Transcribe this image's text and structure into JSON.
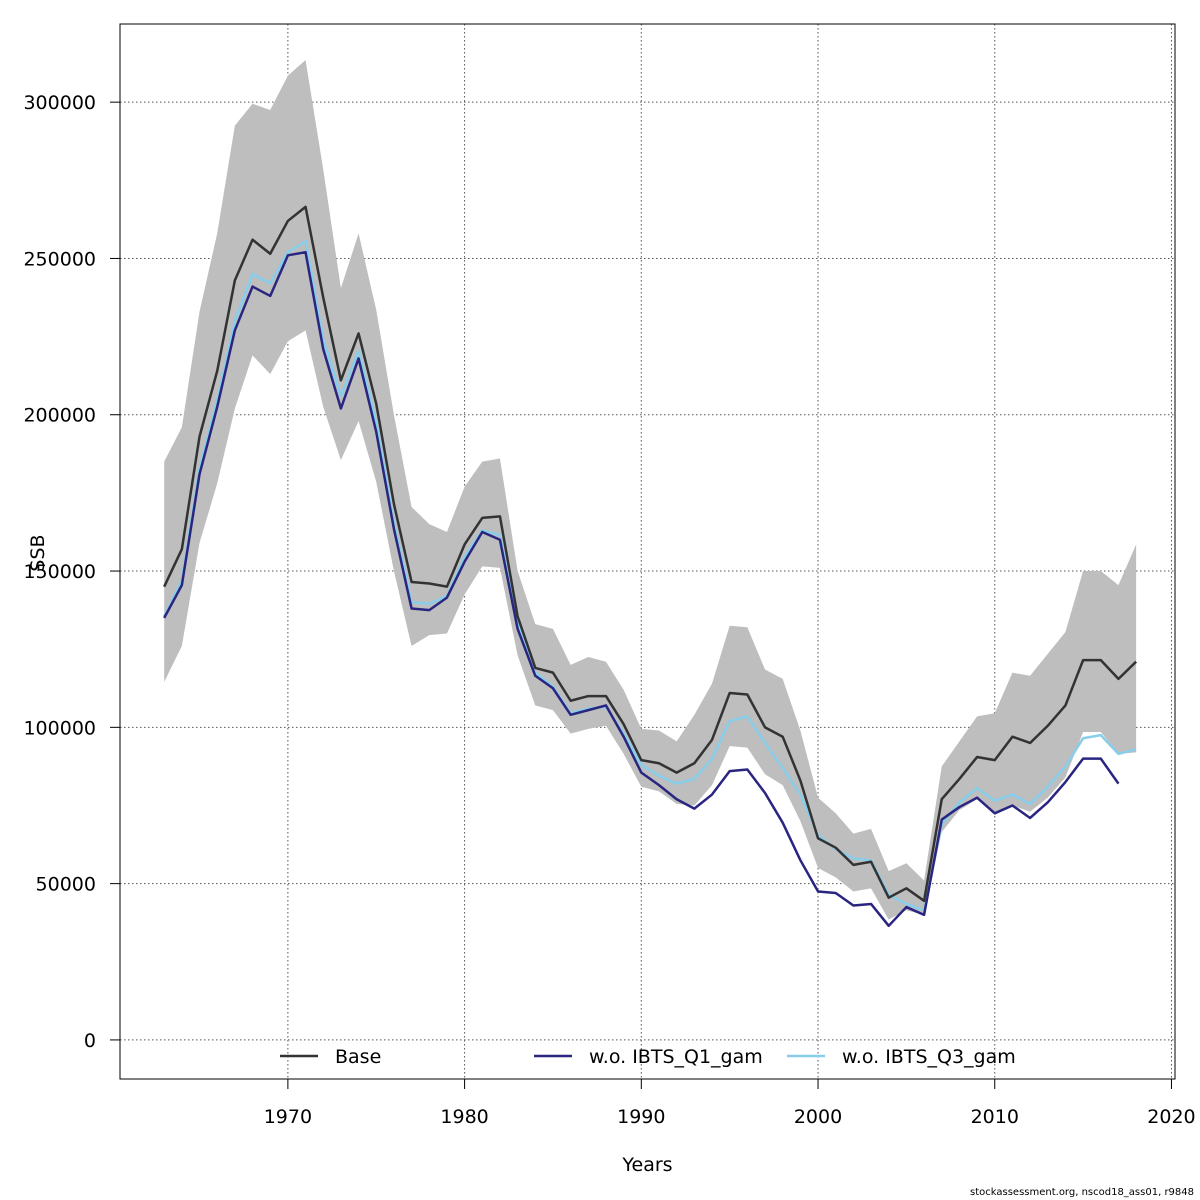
{
  "chart_data": {
    "type": "line",
    "title": "",
    "xlabel": "Years",
    "ylabel": "SSB",
    "xlim": [
      1960.5,
      2020.2
    ],
    "ylim": [
      -12500,
      325000
    ],
    "x_ticks": [
      1970,
      1980,
      1990,
      2000,
      2010,
      2020
    ],
    "y_ticks": [
      0,
      50000,
      100000,
      150000,
      200000,
      250000,
      300000
    ],
    "grid": true,
    "legend_position": "bottom",
    "band": {
      "color": "#bebebe",
      "x": [
        1963,
        1964,
        1965,
        1966,
        1967,
        1968,
        1969,
        1970,
        1971,
        1972,
        1973,
        1974,
        1975,
        1976,
        1977,
        1978,
        1979,
        1980,
        1981,
        1982,
        1983,
        1984,
        1985,
        1986,
        1987,
        1988,
        1989,
        1990,
        1991,
        1992,
        1993,
        1994,
        1995,
        1996,
        1997,
        1998,
        1999,
        2000,
        2001,
        2002,
        2003,
        2004,
        2005,
        2006,
        2007,
        2008,
        2009,
        2010,
        2011,
        2012,
        2013,
        2014,
        2015,
        2016,
        2017,
        2018
      ],
      "upper": [
        185000,
        196000,
        233000,
        258000,
        292500,
        299500,
        297500,
        308500,
        313500,
        278500,
        240500,
        258000,
        233500,
        200000,
        170500,
        165000,
        162500,
        177000,
        185000,
        186000,
        150000,
        133000,
        131500,
        120000,
        122500,
        121000,
        112000,
        99500,
        99000,
        95500,
        104000,
        114000,
        132500,
        132000,
        118500,
        115500,
        99000,
        77500,
        72500,
        66000,
        67500,
        54000,
        56500,
        51000,
        87500,
        95500,
        103500,
        104500,
        117500,
        116500,
        123500,
        130500,
        150000,
        150000,
        145500,
        158500
      ],
      "lower": [
        114500,
        126000,
        159000,
        178000,
        202000,
        219000,
        213000,
        223500,
        227000,
        202500,
        185500,
        198000,
        178500,
        150000,
        126000,
        129500,
        130000,
        142500,
        151500,
        151000,
        123000,
        107000,
        105500,
        98000,
        99500,
        100500,
        91500,
        81000,
        79500,
        75500,
        75000,
        81500,
        94000,
        93500,
        85000,
        81500,
        70000,
        55000,
        52000,
        47500,
        48500,
        38500,
        41500,
        40000,
        66500,
        73500,
        77000,
        73000,
        75000,
        73000,
        77500,
        84000,
        98500,
        98500,
        91500,
        92000
      ]
    },
    "series": [
      {
        "name": "Base",
        "color": "#333333",
        "x": [
          1963,
          1964,
          1965,
          1966,
          1967,
          1968,
          1969,
          1970,
          1971,
          1972,
          1973,
          1974,
          1975,
          1976,
          1977,
          1978,
          1979,
          1980,
          1981,
          1982,
          1983,
          1984,
          1985,
          1986,
          1987,
          1988,
          1989,
          1990,
          1991,
          1992,
          1993,
          1994,
          1995,
          1996,
          1997,
          1998,
          1999,
          2000,
          2001,
          2002,
          2003,
          2004,
          2005,
          2006,
          2007,
          2008,
          2009,
          2010,
          2011,
          2012,
          2013,
          2014,
          2015,
          2016,
          2017,
          2018
        ],
        "values": [
          145000,
          157000,
          193000,
          214000,
          243000,
          256000,
          251500,
          262000,
          266500,
          237500,
          211000,
          226000,
          203500,
          171500,
          146500,
          146000,
          145000,
          158500,
          167000,
          167500,
          135500,
          119000,
          117500,
          108500,
          110000,
          110000,
          101000,
          89500,
          88500,
          85500,
          88500,
          96000,
          111000,
          110500,
          100000,
          97000,
          83000,
          64500,
          61500,
          56000,
          57000,
          45500,
          48500,
          44500,
          77000,
          83500,
          90500,
          89500,
          97000,
          95000,
          100500,
          107000,
          121500,
          121500,
          115500,
          121000
        ]
      },
      {
        "name": "w.o. IBTS_Q1_gam",
        "color": "#2a2580",
        "x": [
          1963,
          1964,
          1965,
          1966,
          1967,
          1968,
          1969,
          1970,
          1971,
          1972,
          1973,
          1974,
          1975,
          1976,
          1977,
          1978,
          1979,
          1980,
          1981,
          1982,
          1983,
          1984,
          1985,
          1986,
          1987,
          1988,
          1989,
          1990,
          1991,
          1992,
          1993,
          1994,
          1995,
          1996,
          1997,
          1998,
          1999,
          2000,
          2001,
          2002,
          2003,
          2004,
          2005,
          2006,
          2007,
          2008,
          2009,
          2010,
          2011,
          2012,
          2013,
          2014,
          2015,
          2016,
          2017
        ],
        "values": [
          135000,
          145500,
          181000,
          202500,
          227000,
          241000,
          238000,
          251000,
          252000,
          221000,
          202000,
          218000,
          194500,
          163500,
          138000,
          137500,
          141500,
          153000,
          162500,
          160000,
          131500,
          116500,
          112500,
          104000,
          105500,
          107000,
          97000,
          85500,
          81500,
          77000,
          74000,
          78500,
          86000,
          86500,
          79000,
          69500,
          57500,
          47500,
          47000,
          43000,
          43500,
          36500,
          42500,
          40000,
          70500,
          74500,
          77500,
          72500,
          75000,
          71000,
          76000,
          82500,
          90000,
          90000,
          82000
        ]
      },
      {
        "name": "w.o. IBTS_Q3_gam",
        "color": "#87ceeb",
        "x": [
          1963,
          1964,
          1965,
          1966,
          1967,
          1968,
          1969,
          1970,
          1971,
          1972,
          1973,
          1974,
          1975,
          1976,
          1977,
          1978,
          1979,
          1980,
          1981,
          1982,
          1983,
          1984,
          1985,
          1986,
          1987,
          1988,
          1989,
          1990,
          1991,
          1992,
          1993,
          1994,
          1995,
          1996,
          1997,
          1998,
          1999,
          2000,
          2001,
          2002,
          2003,
          2004,
          2005,
          2006,
          2007,
          2008,
          2009,
          2010,
          2011,
          2012,
          2013,
          2014,
          2015,
          2016,
          2017,
          2018
        ],
        "values": [
          135500,
          147000,
          183000,
          204500,
          230000,
          245000,
          242000,
          252000,
          255500,
          224000,
          206000,
          220500,
          197500,
          165500,
          140000,
          139500,
          142000,
          154500,
          163000,
          161500,
          133000,
          117500,
          113000,
          104500,
          106000,
          106500,
          98000,
          88000,
          84500,
          82000,
          83500,
          90000,
          102000,
          103500,
          95000,
          87000,
          78500,
          65500,
          61000,
          58000,
          57500,
          46500,
          43500,
          41500,
          69000,
          76000,
          80500,
          76500,
          78500,
          75500,
          81000,
          87500,
          96500,
          97500,
          91500,
          93000
        ]
      }
    ],
    "footer": "stockassessment.org, nscod18_ass01, r9848"
  }
}
